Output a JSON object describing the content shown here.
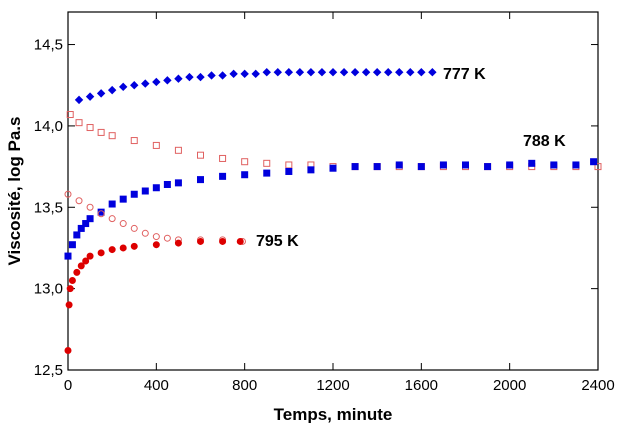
{
  "chart_data": {
    "type": "scatter",
    "xlabel": "Temps, minute",
    "ylabel": "Viscosité, log Pa.s",
    "xlim": [
      0,
      2400
    ],
    "ylim": [
      12.5,
      14.7
    ],
    "xticks": [
      0,
      400,
      800,
      1200,
      1600,
      2000,
      2400
    ],
    "yticks": [
      {
        "value": 12.5,
        "label": "12,5"
      },
      {
        "value": 13.0,
        "label": "13,0"
      },
      {
        "value": 13.5,
        "label": "13,5"
      },
      {
        "value": 14.0,
        "label": "14,0"
      },
      {
        "value": 14.5,
        "label": "14,5"
      }
    ],
    "annotations": [
      "777 K",
      "788 K",
      "795 K"
    ],
    "series": [
      {
        "color": "#0000dd",
        "marker": "diamond",
        "filled": true,
        "x": [
          50,
          100,
          150,
          200,
          250,
          300,
          350,
          400,
          450,
          500,
          550,
          600,
          650,
          700,
          750,
          800,
          850,
          900,
          950,
          1000,
          1050,
          1100,
          1150,
          1200,
          1250,
          1300,
          1350,
          1400,
          1450,
          1500,
          1550,
          1600,
          1650
        ],
        "values": [
          14.16,
          14.18,
          14.2,
          14.22,
          14.24,
          14.25,
          14.26,
          14.27,
          14.28,
          14.29,
          14.3,
          14.3,
          14.31,
          14.31,
          14.32,
          14.32,
          14.32,
          14.33,
          14.33,
          14.33,
          14.33,
          14.33,
          14.33,
          14.33,
          14.33,
          14.33,
          14.33,
          14.33,
          14.33,
          14.33,
          14.33,
          14.33,
          14.33
        ]
      },
      {
        "color": "#e06060",
        "marker": "square",
        "filled": false,
        "x": [
          10,
          50,
          100,
          150,
          200,
          300,
          400,
          500,
          600,
          700,
          800,
          900,
          1000,
          1100,
          1200,
          1300,
          1400,
          1500,
          1600,
          1700,
          1800,
          1900,
          2000,
          2100,
          2200,
          2300,
          2400
        ],
        "values": [
          14.07,
          14.02,
          13.99,
          13.96,
          13.94,
          13.91,
          13.88,
          13.85,
          13.82,
          13.8,
          13.78,
          13.77,
          13.76,
          13.76,
          13.75,
          13.75,
          13.75,
          13.75,
          13.75,
          13.75,
          13.75,
          13.75,
          13.75,
          13.75,
          13.75,
          13.75,
          13.75
        ]
      },
      {
        "color": "#0000dd",
        "marker": "square",
        "filled": true,
        "x": [
          0,
          20,
          40,
          60,
          80,
          100,
          150,
          200,
          250,
          300,
          350,
          400,
          450,
          500,
          600,
          700,
          800,
          900,
          1000,
          1100,
          1200,
          1300,
          1400,
          1500,
          1600,
          1700,
          1800,
          1900,
          2000,
          2100,
          2200,
          2300,
          2380
        ],
        "values": [
          13.2,
          13.27,
          13.33,
          13.37,
          13.4,
          13.43,
          13.47,
          13.52,
          13.55,
          13.58,
          13.6,
          13.62,
          13.64,
          13.65,
          13.67,
          13.69,
          13.7,
          13.71,
          13.72,
          13.73,
          13.74,
          13.75,
          13.75,
          13.76,
          13.75,
          13.76,
          13.76,
          13.75,
          13.76,
          13.77,
          13.76,
          13.76,
          13.78
        ]
      },
      {
        "color": "#e06060",
        "marker": "circle",
        "filled": false,
        "x": [
          0,
          50,
          100,
          150,
          200,
          250,
          300,
          350,
          400,
          450,
          500,
          600,
          700,
          790
        ],
        "values": [
          13.58,
          13.54,
          13.5,
          13.46,
          13.43,
          13.4,
          13.37,
          13.34,
          13.32,
          13.31,
          13.3,
          13.3,
          13.3,
          13.29
        ]
      },
      {
        "color": "#dd0000",
        "marker": "circle",
        "filled": true,
        "x": [
          0,
          5,
          10,
          20,
          40,
          60,
          80,
          100,
          150,
          200,
          250,
          300,
          400,
          500,
          600,
          700,
          780
        ],
        "values": [
          12.62,
          12.9,
          13.0,
          13.05,
          13.1,
          13.14,
          13.17,
          13.2,
          13.22,
          13.24,
          13.25,
          13.26,
          13.27,
          13.28,
          13.29,
          13.29,
          13.29
        ]
      }
    ]
  }
}
